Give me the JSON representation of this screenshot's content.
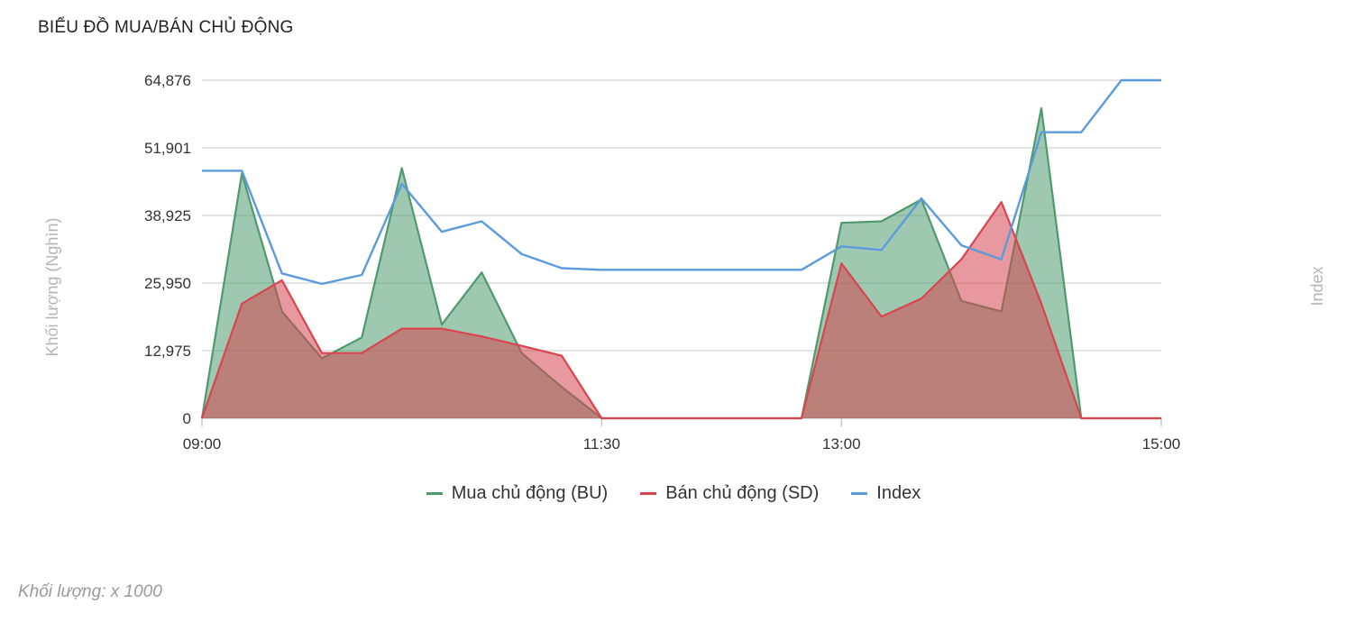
{
  "title": "BIỂU ĐỒ MUA/BÁN CHỦ ĐỘNG",
  "footnote": "Khối lượng: x 1000",
  "chart_data": {
    "type": "area",
    "ylabel": "Khối lượng (Nghìn)",
    "y2label": "Index",
    "y_ticks": [
      "0",
      "12,975",
      "25,950",
      "38,925",
      "51,901",
      "64,876"
    ],
    "ylim": [
      0,
      64876
    ],
    "x_ticks": [
      "09:00",
      "11:30",
      "13:00",
      "15:00"
    ],
    "x": [
      "09:00",
      "09:15",
      "09:30",
      "09:45",
      "10:00",
      "10:15",
      "10:30",
      "10:45",
      "11:00",
      "11:15",
      "11:30",
      "11:45",
      "12:00",
      "12:15",
      "12:30",
      "12:45",
      "13:00",
      "13:15",
      "13:30",
      "13:45",
      "14:00",
      "14:15",
      "14:30",
      "14:45",
      "15:00"
    ],
    "grid": true,
    "legend_position": "bottom",
    "series": [
      {
        "name": "Mua chủ động (BU)",
        "color": "#4f9a6d",
        "values": [
          0,
          47000,
          20500,
          11500,
          15500,
          48000,
          18000,
          28000,
          12500,
          6000,
          0,
          0,
          0,
          0,
          0,
          0,
          37500,
          37800,
          42000,
          22500,
          20500,
          59500,
          0,
          0,
          0
        ]
      },
      {
        "name": "Bán chủ động (SD)",
        "color": "#d9454f",
        "values": [
          0,
          22000,
          26500,
          12500,
          12500,
          17200,
          17200,
          15700,
          13900,
          12000,
          0,
          0,
          0,
          0,
          0,
          0,
          29700,
          19500,
          23000,
          30500,
          41500,
          22000,
          0,
          0,
          0
        ]
      },
      {
        "name": "Index",
        "color": "#5b9bdc",
        "values": [
          47500,
          47500,
          27800,
          25800,
          27500,
          45000,
          35800,
          37800,
          31500,
          28800,
          28500,
          28500,
          28500,
          28500,
          28500,
          28500,
          33000,
          32300,
          42200,
          33200,
          30500,
          54900,
          54900,
          64876,
          64876
        ]
      }
    ]
  }
}
